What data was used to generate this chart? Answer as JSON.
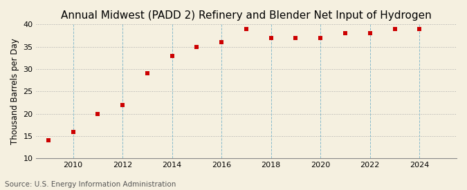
{
  "title": "Annual Midwest (PADD 2) Refinery and Blender Net Input of Hydrogen",
  "ylabel": "Thousand Barrels per Day",
  "source": "Source: U.S. Energy Information Administration",
  "years": [
    2009,
    2010,
    2011,
    2012,
    2013,
    2014,
    2015,
    2016,
    2017,
    2018,
    2019,
    2020,
    2021,
    2022,
    2023,
    2024
  ],
  "values": [
    14,
    16,
    20,
    22,
    29,
    33,
    35,
    36,
    39,
    37,
    37,
    37,
    38,
    38,
    39,
    39
  ],
  "marker_color": "#cc0000",
  "marker": "s",
  "marker_size": 4,
  "xlim": [
    2008.5,
    2025.5
  ],
  "ylim": [
    10,
    40
  ],
  "yticks": [
    10,
    15,
    20,
    25,
    30,
    35,
    40
  ],
  "xticks": [
    2010,
    2012,
    2014,
    2016,
    2018,
    2020,
    2022,
    2024
  ],
  "background_color": "#f5f0e0",
  "hgrid_color": "#aaaaaa",
  "vgrid_color": "#88bbcc",
  "title_fontsize": 11,
  "label_fontsize": 8.5,
  "tick_fontsize": 8,
  "source_fontsize": 7.5
}
